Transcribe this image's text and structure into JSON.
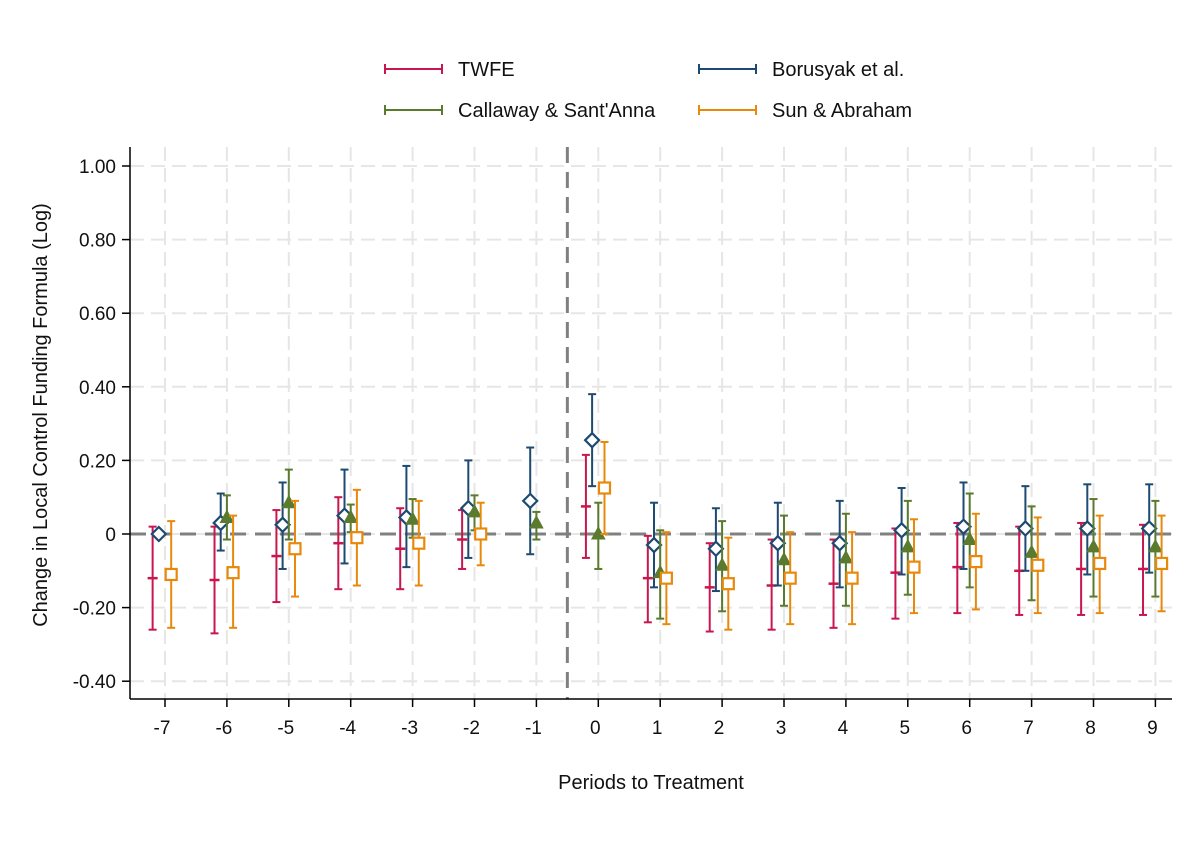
{
  "chart_data": {
    "type": "scatter",
    "subtype": "event-study coefficient plot with confidence intervals",
    "xlabel": "Periods to Treatment",
    "ylabel": "Change in Local Control Funding Formula (Log)",
    "x_ticks": [
      -7,
      -6,
      -5,
      -4,
      -3,
      -2,
      -1,
      0,
      1,
      2,
      3,
      4,
      5,
      6,
      7,
      8,
      9
    ],
    "y_ticks": [
      1.0,
      0.8,
      0.6,
      0.4,
      0.2,
      0,
      -0.2,
      -0.4
    ],
    "y_tick_labels": [
      "1.00",
      "0.80",
      "0.60",
      "0.40",
      "0.20",
      "0",
      "-0.20",
      "-0.40"
    ],
    "ylim": [
      -0.45,
      1.05
    ],
    "xlim": [
      -7.6,
      9.3
    ],
    "grid": true,
    "reference_lines": {
      "horizontal_y": 0,
      "vertical_x": -0.5,
      "style": "dashed"
    },
    "legend_position": "top",
    "series": [
      {
        "name": "TWFE",
        "color": "#c8174f",
        "marker": "dash",
        "offset": -0.2,
        "points": [
          {
            "x": -7,
            "y": -0.12,
            "lo": -0.26,
            "hi": 0.02
          },
          {
            "x": -6,
            "y": -0.125,
            "lo": -0.27,
            "hi": 0.02
          },
          {
            "x": -5,
            "y": -0.06,
            "lo": -0.185,
            "hi": 0.065
          },
          {
            "x": -4,
            "y": -0.025,
            "lo": -0.15,
            "hi": 0.1
          },
          {
            "x": -3,
            "y": -0.04,
            "lo": -0.15,
            "hi": 0.07
          },
          {
            "x": -2,
            "y": -0.015,
            "lo": -0.095,
            "hi": 0.065
          },
          {
            "x": 0,
            "y": 0.075,
            "lo": -0.065,
            "hi": 0.215
          },
          {
            "x": 1,
            "y": -0.12,
            "lo": -0.24,
            "hi": -0.005
          },
          {
            "x": 2,
            "y": -0.145,
            "lo": -0.265,
            "hi": -0.025
          },
          {
            "x": 3,
            "y": -0.14,
            "lo": -0.26,
            "hi": -0.015
          },
          {
            "x": 4,
            "y": -0.135,
            "lo": -0.255,
            "hi": -0.015
          },
          {
            "x": 5,
            "y": -0.105,
            "lo": -0.23,
            "hi": 0.015
          },
          {
            "x": 6,
            "y": -0.09,
            "lo": -0.215,
            "hi": 0.03
          },
          {
            "x": 7,
            "y": -0.1,
            "lo": -0.22,
            "hi": 0.02
          },
          {
            "x": 8,
            "y": -0.095,
            "lo": -0.22,
            "hi": 0.03
          },
          {
            "x": 9,
            "y": -0.095,
            "lo": -0.22,
            "hi": 0.025
          }
        ]
      },
      {
        "name": "Borusyak et al.",
        "color": "#1c4a72",
        "marker": "diamond",
        "offset": -0.1,
        "points": [
          {
            "x": -7,
            "y": 0.0,
            "lo": 0.0,
            "hi": 0.0
          },
          {
            "x": -6,
            "y": 0.03,
            "lo": -0.045,
            "hi": 0.11
          },
          {
            "x": -5,
            "y": 0.025,
            "lo": -0.095,
            "hi": 0.14
          },
          {
            "x": -4,
            "y": 0.05,
            "lo": -0.08,
            "hi": 0.175
          },
          {
            "x": -3,
            "y": 0.045,
            "lo": -0.09,
            "hi": 0.185
          },
          {
            "x": -2,
            "y": 0.07,
            "lo": -0.065,
            "hi": 0.2
          },
          {
            "x": -1,
            "y": 0.09,
            "lo": -0.055,
            "hi": 0.235
          },
          {
            "x": 0,
            "y": 0.255,
            "lo": 0.13,
            "hi": 0.38
          },
          {
            "x": 1,
            "y": -0.03,
            "lo": -0.145,
            "hi": 0.085
          },
          {
            "x": 2,
            "y": -0.04,
            "lo": -0.155,
            "hi": 0.07
          },
          {
            "x": 3,
            "y": -0.025,
            "lo": -0.14,
            "hi": 0.085
          },
          {
            "x": 4,
            "y": -0.025,
            "lo": -0.145,
            "hi": 0.09
          },
          {
            "x": 5,
            "y": 0.01,
            "lo": -0.11,
            "hi": 0.125
          },
          {
            "x": 6,
            "y": 0.02,
            "lo": -0.095,
            "hi": 0.14
          },
          {
            "x": 7,
            "y": 0.015,
            "lo": -0.1,
            "hi": 0.13
          },
          {
            "x": 8,
            "y": 0.015,
            "lo": -0.11,
            "hi": 0.135
          },
          {
            "x": 9,
            "y": 0.015,
            "lo": -0.105,
            "hi": 0.135
          }
        ]
      },
      {
        "name": "Callaway & Sant'Anna",
        "color": "#5a7a2e",
        "marker": "triangle",
        "offset": 0.0,
        "points": [
          {
            "x": -6,
            "y": 0.045,
            "lo": -0.015,
            "hi": 0.105
          },
          {
            "x": -5,
            "y": 0.085,
            "lo": -0.015,
            "hi": 0.175
          },
          {
            "x": -4,
            "y": 0.045,
            "lo": 0.005,
            "hi": 0.08
          },
          {
            "x": -3,
            "y": 0.04,
            "lo": -0.01,
            "hi": 0.095
          },
          {
            "x": -2,
            "y": 0.06,
            "lo": 0.01,
            "hi": 0.105
          },
          {
            "x": -1,
            "y": 0.03,
            "lo": -0.015,
            "hi": 0.06
          },
          {
            "x": 0,
            "y": 0.0,
            "lo": -0.095,
            "hi": 0.085
          },
          {
            "x": 1,
            "y": -0.105,
            "lo": -0.23,
            "hi": 0.01
          },
          {
            "x": 2,
            "y": -0.085,
            "lo": -0.21,
            "hi": 0.035
          },
          {
            "x": 3,
            "y": -0.07,
            "lo": -0.195,
            "hi": 0.05
          },
          {
            "x": 4,
            "y": -0.065,
            "lo": -0.195,
            "hi": 0.055
          },
          {
            "x": 5,
            "y": -0.035,
            "lo": -0.165,
            "hi": 0.09
          },
          {
            "x": 6,
            "y": -0.015,
            "lo": -0.145,
            "hi": 0.11
          },
          {
            "x": 7,
            "y": -0.05,
            "lo": -0.18,
            "hi": 0.075
          },
          {
            "x": 8,
            "y": -0.035,
            "lo": -0.17,
            "hi": 0.095
          },
          {
            "x": 9,
            "y": -0.035,
            "lo": -0.17,
            "hi": 0.09
          }
        ]
      },
      {
        "name": "Sun & Abraham",
        "color": "#e8890c",
        "marker": "square",
        "offset": 0.1,
        "points": [
          {
            "x": -7,
            "y": -0.11,
            "lo": -0.255,
            "hi": 0.035
          },
          {
            "x": -6,
            "y": -0.105,
            "lo": -0.255,
            "hi": 0.05
          },
          {
            "x": -5,
            "y": -0.04,
            "lo": -0.17,
            "hi": 0.09
          },
          {
            "x": -4,
            "y": -0.01,
            "lo": -0.14,
            "hi": 0.12
          },
          {
            "x": -3,
            "y": -0.025,
            "lo": -0.14,
            "hi": 0.09
          },
          {
            "x": -2,
            "y": 0.0,
            "lo": -0.085,
            "hi": 0.085
          },
          {
            "x": 0,
            "y": 0.125,
            "lo": 0.0,
            "hi": 0.25
          },
          {
            "x": 1,
            "y": -0.12,
            "lo": -0.245,
            "hi": 0.005
          },
          {
            "x": 2,
            "y": -0.135,
            "lo": -0.26,
            "hi": -0.01
          },
          {
            "x": 3,
            "y": -0.12,
            "lo": -0.245,
            "hi": 0.005
          },
          {
            "x": 4,
            "y": -0.12,
            "lo": -0.245,
            "hi": 0.005
          },
          {
            "x": 5,
            "y": -0.09,
            "lo": -0.215,
            "hi": 0.04
          },
          {
            "x": 6,
            "y": -0.075,
            "lo": -0.205,
            "hi": 0.055
          },
          {
            "x": 7,
            "y": -0.085,
            "lo": -0.215,
            "hi": 0.045
          },
          {
            "x": 8,
            "y": -0.08,
            "lo": -0.215,
            "hi": 0.05
          },
          {
            "x": 9,
            "y": -0.08,
            "lo": -0.21,
            "hi": 0.05
          }
        ]
      }
    ],
    "legend_order": [
      "TWFE",
      "Borusyak et al.",
      "Callaway & Sant'Anna",
      "Sun & Abraham"
    ]
  }
}
